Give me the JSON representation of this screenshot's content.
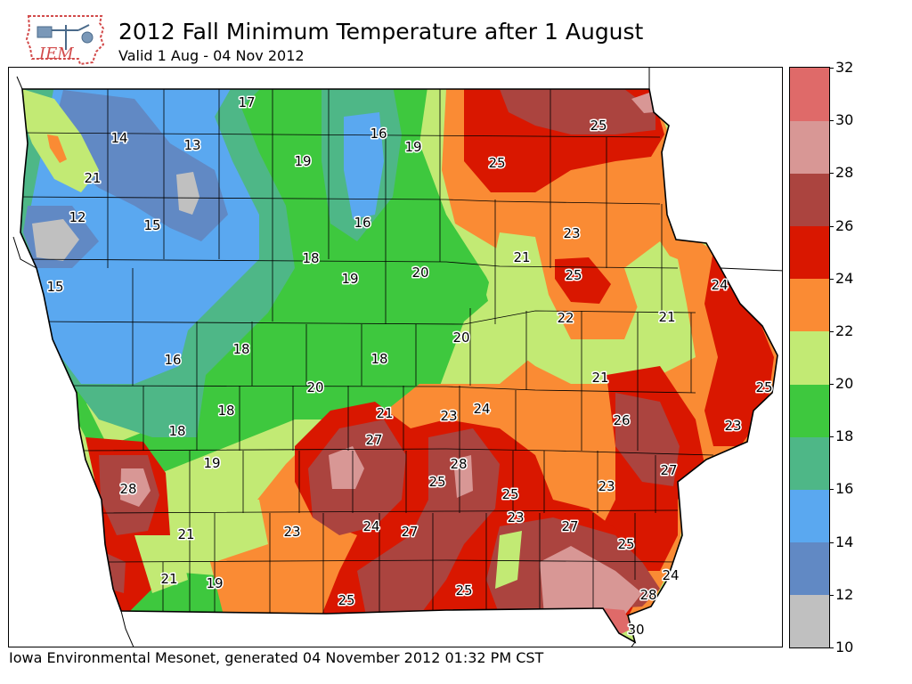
{
  "header": {
    "title": "2012 Fall Minimum Temperature after 1 August",
    "subtitle": "Valid 1 Aug - 04 Nov 2012",
    "logo_text": "IEM"
  },
  "footer": {
    "credit": "Iowa Environmental Mesonet, generated 04 November 2012 01:32 PM CST"
  },
  "colorbar": {
    "levels": [
      10,
      12,
      14,
      16,
      18,
      20,
      22,
      24,
      26,
      28,
      30,
      32
    ],
    "colors": [
      "#c0c0c0",
      "#6189c4",
      "#5aa8f0",
      "#4eb787",
      "#3ec83e",
      "#c2ea74",
      "#fa8b34",
      "#d91700",
      "#ab443f",
      "#d89795",
      "#df6a69"
    ]
  },
  "station_values": [
    {
      "text": "17"
    },
    {
      "text": "14"
    },
    {
      "text": "13"
    },
    {
      "text": "16"
    },
    {
      "text": "19"
    },
    {
      "text": "19"
    },
    {
      "text": "25"
    },
    {
      "text": "25"
    },
    {
      "text": "21"
    },
    {
      "text": "12"
    },
    {
      "text": "15"
    },
    {
      "text": "16"
    },
    {
      "text": "23"
    },
    {
      "text": "21"
    },
    {
      "text": "18"
    },
    {
      "text": "19"
    },
    {
      "text": "20"
    },
    {
      "text": "25"
    },
    {
      "text": "24"
    },
    {
      "text": "15"
    },
    {
      "text": "22"
    },
    {
      "text": "21"
    },
    {
      "text": "20"
    },
    {
      "text": "18"
    },
    {
      "text": "16"
    },
    {
      "text": "18"
    },
    {
      "text": "21"
    },
    {
      "text": "20"
    },
    {
      "text": "25"
    },
    {
      "text": "18"
    },
    {
      "text": "21"
    },
    {
      "text": "24"
    },
    {
      "text": "23"
    },
    {
      "text": "26"
    },
    {
      "text": "23"
    },
    {
      "text": "18"
    },
    {
      "text": "27"
    },
    {
      "text": "19"
    },
    {
      "text": "28"
    },
    {
      "text": "27"
    },
    {
      "text": "28"
    },
    {
      "text": "25"
    },
    {
      "text": "25"
    },
    {
      "text": "23"
    },
    {
      "text": "21"
    },
    {
      "text": "23"
    },
    {
      "text": "24"
    },
    {
      "text": "27"
    },
    {
      "text": "23"
    },
    {
      "text": "27"
    },
    {
      "text": "25"
    },
    {
      "text": "21"
    },
    {
      "text": "19"
    },
    {
      "text": "25"
    },
    {
      "text": "25"
    },
    {
      "text": "24"
    },
    {
      "text": "28"
    },
    {
      "text": "30"
    }
  ]
}
